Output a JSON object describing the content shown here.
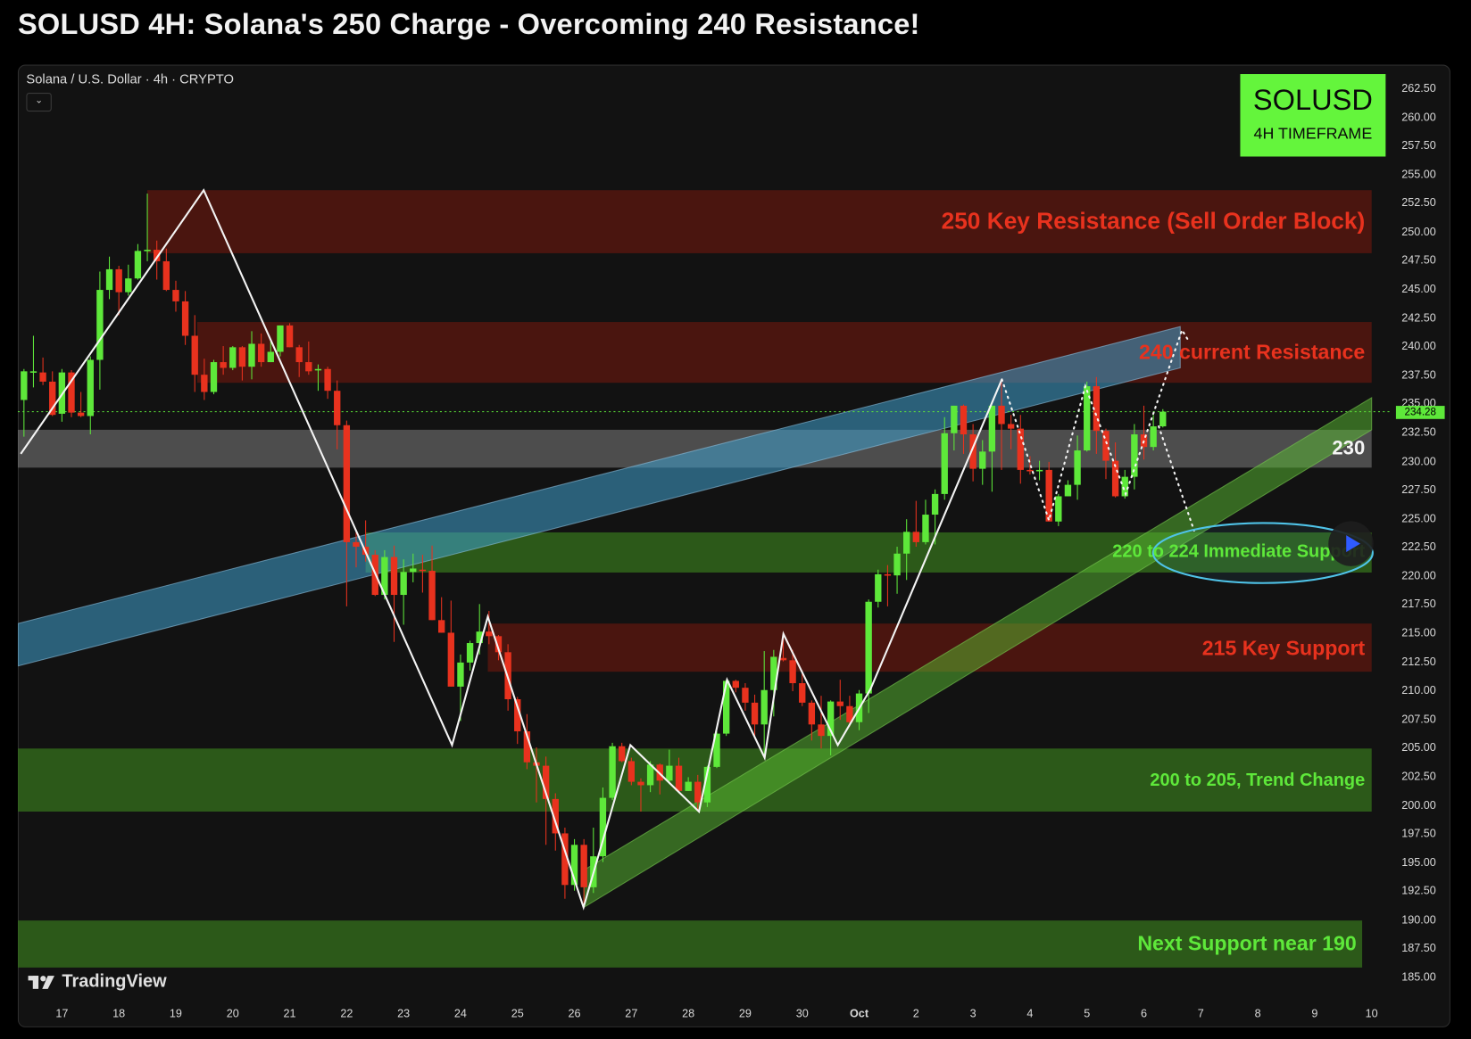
{
  "header": {
    "title": "SOLUSD 4H: Solana's 250 Charge - Overcoming 240 Resistance!"
  },
  "legend": {
    "symbol_text": "Solana / U.S. Dollar · 4h · CRYPTO",
    "collapse_icon": "chevron-down-icon"
  },
  "badge": {
    "symbol": "SOLUSD",
    "timeframe": "4H TIMEFRAME",
    "color": "#64f53c"
  },
  "branding": {
    "logo": "TradingView"
  },
  "colors": {
    "up": "#5ee83a",
    "down": "#e8321e",
    "resistance_zone": "#4a1510",
    "support_zone": "#2b5a18",
    "pivot_zone": "#555555",
    "rising_channel_blue": "#3a8fb0",
    "rising_channel_green": "#4caf2e",
    "ellipse": "#4fc3e8"
  },
  "chart_data": {
    "type": "candlestick",
    "symbol": "SOLUSD",
    "interval": "4h",
    "first_candle": "Sep 16 08:00",
    "ylim": [
      185,
      262.5
    ],
    "y_ticks": [
      "262.50",
      "260.00",
      "257.50",
      "255.00",
      "252.50",
      "250.00",
      "247.50",
      "245.00",
      "242.50",
      "240.00",
      "237.50",
      "235.00",
      "232.50",
      "230.00",
      "227.50",
      "225.00",
      "222.50",
      "220.00",
      "217.50",
      "215.00",
      "212.50",
      "210.00",
      "207.50",
      "205.00",
      "202.50",
      "200.00",
      "197.50",
      "195.00",
      "192.50",
      "190.00",
      "187.50",
      "185.00"
    ],
    "x_ticks": [
      {
        "label": "17",
        "date": "Sep 17 00:00"
      },
      {
        "label": "18",
        "date": "Sep 18 00:00"
      },
      {
        "label": "19",
        "date": "Sep 19 00:00"
      },
      {
        "label": "20",
        "date": "Sep 20 00:00"
      },
      {
        "label": "21",
        "date": "Sep 21 00:00"
      },
      {
        "label": "22",
        "date": "Sep 22 00:00"
      },
      {
        "label": "23",
        "date": "Sep 23 00:00"
      },
      {
        "label": "24",
        "date": "Sep 24 00:00"
      },
      {
        "label": "25",
        "date": "Sep 25 00:00"
      },
      {
        "label": "26",
        "date": "Sep 26 00:00"
      },
      {
        "label": "27",
        "date": "Sep 27 00:00"
      },
      {
        "label": "28",
        "date": "Sep 28 00:00"
      },
      {
        "label": "29",
        "date": "Sep 29 00:00"
      },
      {
        "label": "30",
        "date": "Sep 30 00:00"
      },
      {
        "label": "Oct",
        "date": "Oct 1 00:00",
        "bold": true
      },
      {
        "label": "2",
        "date": "Oct 2 00:00"
      },
      {
        "label": "3",
        "date": "Oct 3 00:00"
      },
      {
        "label": "4",
        "date": "Oct 4 00:00"
      },
      {
        "label": "5",
        "date": "Oct 5 00:00"
      },
      {
        "label": "6",
        "date": "Oct 6 00:00"
      },
      {
        "label": "7",
        "date": "Oct 7 00:00"
      },
      {
        "label": "8",
        "date": "Oct 8 00:00"
      },
      {
        "label": "9",
        "date": "Oct 9 00:00"
      },
      {
        "label": "10",
        "date": "Oct 10 00:00"
      }
    ],
    "last_price": "234.28",
    "candles_ohlc": [
      [
        235.3,
        238.0,
        232.1,
        237.8
      ],
      [
        237.7,
        240.9,
        236.4,
        237.8
      ],
      [
        237.7,
        239.0,
        236.6,
        236.9
      ],
      [
        236.9,
        237.8,
        233.9,
        234.0
      ],
      [
        234.1,
        238.0,
        233.4,
        237.7
      ],
      [
        237.7,
        237.9,
        233.8,
        234.2
      ],
      [
        234.2,
        236.0,
        233.8,
        233.9
      ],
      [
        233.9,
        239.1,
        232.3,
        238.8
      ],
      [
        238.8,
        246.5,
        236.2,
        244.9
      ],
      [
        244.9,
        247.8,
        244.1,
        246.7
      ],
      [
        246.7,
        247.0,
        242.7,
        244.7
      ],
      [
        244.7,
        247.1,
        244.4,
        245.9
      ],
      [
        245.9,
        248.9,
        245.8,
        248.3
      ],
      [
        248.3,
        253.3,
        247.4,
        248.4
      ],
      [
        248.4,
        249.2,
        245.8,
        247.4
      ],
      [
        247.4,
        248.5,
        244.8,
        244.9
      ],
      [
        244.9,
        245.7,
        243.0,
        243.9
      ],
      [
        243.9,
        244.8,
        240.1,
        240.9
      ],
      [
        240.9,
        242.7,
        236.0,
        237.5
      ],
      [
        237.5,
        238.9,
        235.3,
        236.0
      ],
      [
        236.0,
        238.8,
        235.8,
        238.6
      ],
      [
        238.6,
        240.0,
        237.5,
        238.1
      ],
      [
        238.1,
        240.0,
        237.9,
        239.9
      ],
      [
        239.9,
        240.0,
        237.0,
        238.2
      ],
      [
        238.2,
        241.3,
        237.1,
        240.2
      ],
      [
        240.2,
        241.1,
        238.2,
        238.6
      ],
      [
        238.6,
        240.4,
        238.6,
        239.5
      ],
      [
        239.5,
        241.8,
        239.1,
        241.8
      ],
      [
        241.8,
        242.0,
        239.9,
        239.9
      ],
      [
        239.9,
        240.1,
        237.3,
        238.6
      ],
      [
        238.6,
        240.4,
        237.5,
        237.8
      ],
      [
        237.9,
        238.4,
        236.1,
        238.0
      ],
      [
        238.0,
        238.2,
        235.4,
        236.1
      ],
      [
        236.1,
        237.0,
        231.0,
        233.1
      ],
      [
        233.1,
        233.5,
        217.3,
        222.9
      ],
      [
        222.9,
        223.8,
        220.7,
        222.5
      ],
      [
        222.5,
        224.8,
        221.2,
        221.8
      ],
      [
        221.8,
        222.2,
        218.2,
        218.3
      ],
      [
        218.3,
        222.2,
        217.9,
        221.6
      ],
      [
        221.6,
        222.6,
        214.2,
        218.3
      ],
      [
        218.3,
        221.4,
        215.7,
        220.3
      ],
      [
        220.3,
        221.9,
        219.4,
        220.6
      ],
      [
        220.5,
        221.8,
        218.5,
        220.4
      ],
      [
        220.4,
        222.6,
        216.1,
        216.1
      ],
      [
        216.1,
        218.1,
        215.0,
        215.0
      ],
      [
        215.0,
        217.8,
        210.3,
        210.3
      ],
      [
        210.3,
        213.1,
        207.3,
        212.4
      ],
      [
        212.4,
        214.3,
        211.7,
        214.1
      ],
      [
        214.1,
        217.5,
        213.1,
        215.1
      ],
      [
        215.1,
        216.9,
        214.0,
        214.7
      ],
      [
        214.7,
        214.8,
        212.6,
        213.3
      ],
      [
        213.3,
        214.0,
        208.2,
        209.2
      ],
      [
        209.2,
        209.4,
        205.3,
        206.4
      ],
      [
        206.4,
        207.9,
        203.1,
        203.7
      ],
      [
        203.7,
        205.0,
        200.2,
        203.4
      ],
      [
        203.4,
        204.2,
        196.5,
        200.5
      ],
      [
        200.5,
        201.0,
        196.0,
        197.5
      ],
      [
        197.5,
        198.0,
        191.8,
        193.0
      ],
      [
        193.0,
        197.0,
        192.5,
        196.5
      ],
      [
        196.5,
        197.0,
        191.0,
        192.8
      ],
      [
        192.8,
        198.0,
        192.3,
        195.5
      ],
      [
        195.5,
        201.5,
        195.0,
        200.6
      ],
      [
        200.6,
        205.4,
        200.4,
        205.1
      ],
      [
        205.1,
        205.4,
        203.7,
        203.8
      ],
      [
        203.8,
        204.1,
        201.7,
        202.0
      ],
      [
        202.0,
        202.3,
        199.4,
        201.7
      ],
      [
        201.7,
        203.8,
        201.1,
        203.5
      ],
      [
        203.5,
        203.6,
        200.9,
        202.1
      ],
      [
        202.1,
        204.8,
        201.8,
        203.4
      ],
      [
        203.4,
        204.1,
        201.0,
        201.2
      ],
      [
        201.2,
        202.4,
        201.2,
        202.0
      ],
      [
        202.0,
        202.6,
        199.4,
        200.2
      ],
      [
        200.2,
        203.4,
        199.8,
        203.3
      ],
      [
        203.3,
        206.4,
        203.2,
        206.2
      ],
      [
        206.2,
        210.9,
        206.0,
        210.8
      ],
      [
        210.8,
        210.9,
        209.8,
        210.2
      ],
      [
        210.2,
        210.6,
        208.2,
        208.9
      ],
      [
        208.9,
        209.6,
        206.0,
        207.0
      ],
      [
        207.0,
        213.4,
        204.3,
        210.0
      ],
      [
        210.0,
        213.5,
        207.7,
        212.9
      ],
      [
        212.8,
        215.0,
        212.5,
        212.6
      ],
      [
        212.6,
        213.5,
        209.9,
        210.6
      ],
      [
        210.6,
        211.7,
        208.6,
        208.9
      ],
      [
        208.9,
        209.1,
        205.6,
        207.0
      ],
      [
        207.0,
        209.5,
        204.9,
        206.0
      ],
      [
        206.0,
        209.1,
        204.3,
        209.0
      ],
      [
        209.0,
        210.9,
        207.4,
        208.6
      ],
      [
        208.6,
        209.5,
        206.8,
        207.2
      ],
      [
        207.2,
        210.0,
        206.5,
        209.7
      ],
      [
        209.7,
        217.9,
        208.0,
        217.7
      ],
      [
        217.7,
        220.5,
        217.2,
        220.1
      ],
      [
        220.1,
        220.9,
        217.3,
        220.0
      ],
      [
        220.0,
        222.5,
        218.4,
        221.9
      ],
      [
        221.9,
        224.9,
        219.6,
        223.8
      ],
      [
        223.8,
        226.5,
        222.5,
        222.9
      ],
      [
        222.9,
        226.6,
        222.7,
        225.3
      ],
      [
        225.3,
        227.5,
        222.7,
        227.1
      ],
      [
        227.1,
        233.8,
        226.6,
        232.4
      ],
      [
        232.4,
        234.8,
        230.9,
        234.8
      ],
      [
        234.8,
        234.9,
        230.6,
        232.3
      ],
      [
        232.3,
        233.2,
        228.2,
        229.3
      ],
      [
        229.3,
        231.8,
        227.9,
        230.8
      ],
      [
        230.8,
        234.8,
        227.3,
        234.8
      ],
      [
        234.8,
        237.0,
        229.2,
        233.2
      ],
      [
        233.2,
        234.0,
        231.0,
        232.8
      ],
      [
        232.8,
        234.0,
        228.0,
        229.2
      ],
      [
        229.2,
        230.4,
        228.8,
        229.1
      ],
      [
        229.1,
        230.0,
        228.3,
        229.2
      ],
      [
        229.2,
        229.9,
        224.7,
        224.7
      ],
      [
        224.7,
        227.1,
        224.3,
        226.9
      ],
      [
        226.9,
        228.3,
        226.9,
        227.9
      ],
      [
        227.9,
        232.2,
        226.6,
        230.9
      ],
      [
        230.9,
        236.9,
        230.8,
        236.5
      ],
      [
        236.5,
        237.3,
        230.6,
        232.6
      ],
      [
        232.6,
        232.8,
        228.4,
        230.0
      ],
      [
        230.0,
        231.6,
        226.8,
        226.9
      ],
      [
        226.9,
        229.2,
        226.7,
        228.6
      ],
      [
        228.6,
        233.2,
        227.5,
        232.3
      ],
      [
        232.3,
        234.8,
        230.1,
        231.2
      ],
      [
        231.2,
        234.0,
        230.9,
        233.0
      ],
      [
        233.0,
        234.5,
        232.9,
        234.28
      ]
    ],
    "zones": [
      {
        "label": "250 Key Resistance (Sell Order Block)",
        "kind": "resistance",
        "from": "Sep 18 12:00",
        "to": "Oct 10 00:00",
        "high": 253.6,
        "low": 248.1
      },
      {
        "label": "240 current Resistance",
        "kind": "resistance",
        "from": "Sep 19 09:00",
        "to": "Oct 10 00:00",
        "high": 242.1,
        "low": 236.8
      },
      {
        "label": "230",
        "kind": "pivot",
        "from": null,
        "to": "Oct 10 00:00",
        "high": 232.7,
        "low": 229.4
      },
      {
        "label": "220 to 224 Immediate Support",
        "kind": "support",
        "from": "Sep 22 08:00",
        "to": "Oct 10 00:00",
        "high": 223.75,
        "low": 220.25
      },
      {
        "label": "215 Key Support",
        "kind": "resistance",
        "from": "Sep 24 11:30",
        "to": "Oct 10 00:00",
        "high": 215.8,
        "low": 211.6
      },
      {
        "label": "200 to 205, Trend Change",
        "kind": "support",
        "from": null,
        "to": "Oct 10 00:00",
        "high": 204.9,
        "low": 199.4
      },
      {
        "label": "Next Support near 190",
        "kind": "support",
        "from": null,
        "to": "Oct 9 20:00",
        "high": 189.9,
        "low": 185.8
      }
    ],
    "channels": [
      {
        "color": "blue",
        "upper": [
          [
            "Sep 16 05:30",
            215.8
          ],
          [
            "Oct 6 15:20",
            241.7
          ]
        ],
        "lower": [
          [
            "Sep 16 05:30",
            212.1
          ],
          [
            "Oct 6 15:20",
            238.1
          ]
        ]
      },
      {
        "color": "green",
        "upper": [
          [
            "Sep 26 04:00",
            194.3
          ],
          [
            "Oct 10 00:00",
            235.5
          ]
        ],
        "lower": [
          [
            "Sep 26 04:00",
            191.05
          ],
          [
            "Oct 10 00:00",
            232.7
          ]
        ]
      }
    ],
    "swing_path": [
      [
        "Sep 16 06:40",
        230.6
      ],
      [
        "Sep 19 11:45",
        253.6
      ],
      [
        "Sep 23 20:25",
        205.2
      ],
      [
        "Sep 24 11:30",
        216.4
      ],
      [
        "Sep 26 03:50",
        191.05
      ],
      [
        "Sep 26 23:35",
        205.2
      ],
      [
        "Sep 28 04:30",
        199.4
      ],
      [
        "Sep 28 16:20",
        210.9
      ],
      [
        "Sep 29 08:10",
        204.1
      ],
      [
        "Sep 29 16:05",
        214.9
      ],
      [
        "Sep 30 15:00",
        205.2
      ],
      [
        "Oct 1 04:50",
        210.1
      ],
      [
        "Oct 3 12:10",
        237.1
      ]
    ],
    "projection_paths": [
      [
        [
          "Oct 3 12:10",
          237.1
        ],
        [
          "Oct 4 08:00",
          224.8
        ],
        [
          "Oct 4 23:20",
          236.5
        ],
        [
          "Oct 5 16:20",
          227.1
        ],
        [
          "Oct 6 16:05",
          241.4
        ],
        [
          "Oct 6 19:10",
          240.35
        ]
      ],
      [
        [
          "Oct 6 06:15",
          233.0
        ],
        [
          "Oct 6 21:10",
          223.9
        ]
      ]
    ],
    "highlight_ellipse": {
      "center": [
        "Oct 8 02:10",
        221.95
      ]
    }
  }
}
